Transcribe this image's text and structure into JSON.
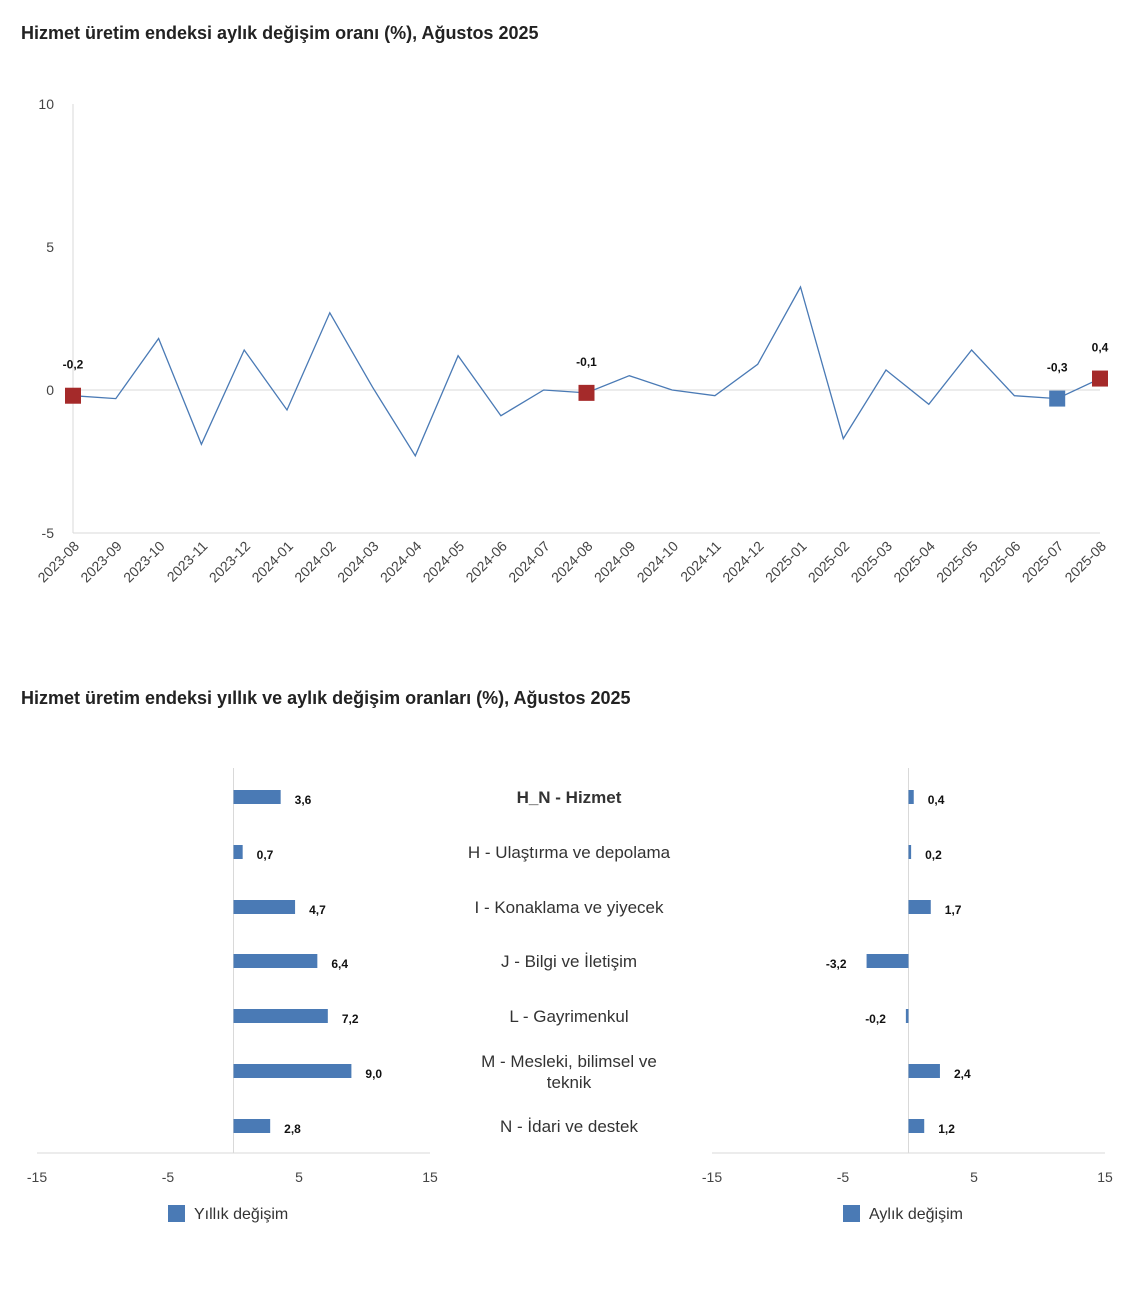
{
  "page": {
    "line_title": "Hizmet üretim endeksi aylık değişim oranı (%), Ağustos 2025",
    "bar_title": "Hizmet üretim endeksi yıllık ve aylık değişim oranları (%), Ağustos 2025"
  },
  "colors": {
    "line": "#4a7ab5",
    "bar": "#4a7ab5",
    "highlight_red": "#a52a2a",
    "highlight_blue": "#4a7ab5",
    "grid": "#d9d9d9"
  },
  "chart_data": [
    {
      "type": "line",
      "title": "Hizmet üretim endeksi aylık değişim oranı (%), Ağustos 2025",
      "x": [
        "2023-08",
        "2023-09",
        "2023-10",
        "2023-11",
        "2023-12",
        "2024-01",
        "2024-02",
        "2024-03",
        "2024-04",
        "2024-05",
        "2024-06",
        "2024-07",
        "2024-08",
        "2024-09",
        "2024-10",
        "2024-11",
        "2024-12",
        "2025-01",
        "2025-02",
        "2025-03",
        "2025-04",
        "2025-05",
        "2025-06",
        "2025-07",
        "2025-08"
      ],
      "values": [
        -0.2,
        -0.3,
        1.8,
        -1.9,
        1.4,
        -0.7,
        2.7,
        0.1,
        -2.3,
        1.2,
        -0.9,
        0.0,
        -0.1,
        0.5,
        0.0,
        -0.2,
        0.9,
        3.6,
        -1.7,
        0.7,
        -0.5,
        1.4,
        -0.2,
        -0.3,
        0.4
      ],
      "ylim": [
        -5,
        10
      ],
      "yticks": [
        "-5",
        "0",
        "5",
        "10"
      ],
      "ytick_values": [
        -5,
        0,
        5,
        10
      ],
      "highlights": [
        {
          "index": 0,
          "label": "-0,2",
          "color": "red"
        },
        {
          "index": 12,
          "label": "-0,1",
          "color": "red"
        },
        {
          "index": 23,
          "label": "-0,3",
          "color": "blue"
        },
        {
          "index": 24,
          "label": "0,4",
          "color": "red"
        }
      ]
    },
    {
      "type": "bar",
      "orientation": "horizontal",
      "title": "Hizmet üretim endeksi yıllık ve aylık değişim oranları (%), Ağustos 2025",
      "categories": [
        "H_N - Hizmet",
        "H - Ulaştırma ve depolama",
        "I - Konaklama ve yiyecek",
        "J - Bilgi ve İletişim",
        "L - Gayrimenkul",
        "M - Mesleki, bilimsel ve teknik",
        "N - İdari ve destek"
      ],
      "category_lines": [
        [
          "H_N - Hizmet"
        ],
        [
          "H - Ulaştırma ve depolama"
        ],
        [
          "I - Konaklama ve yiyecek"
        ],
        [
          "J - Bilgi ve İletişim"
        ],
        [
          "L - Gayrimenkul"
        ],
        [
          "M - Mesleki, bilimsel ve",
          "teknik"
        ],
        [
          "N - İdari ve destek"
        ]
      ],
      "bold_category": 0,
      "xlim": [
        -15,
        15
      ],
      "xticks": [
        "-15",
        "-5",
        "5",
        "15"
      ],
      "xtick_values": [
        -15,
        -5,
        5,
        15
      ],
      "series": [
        {
          "name": "Yıllık değişim",
          "values": [
            3.6,
            0.7,
            4.7,
            6.4,
            7.2,
            9.0,
            2.8
          ],
          "labels": [
            "3,6",
            "0,7",
            "4,7",
            "6,4",
            "7,2",
            "9,0",
            "2,8"
          ]
        },
        {
          "name": "Aylık değişim",
          "values": [
            0.4,
            0.2,
            1.7,
            -3.2,
            -0.2,
            2.4,
            1.2
          ],
          "labels": [
            "0,4",
            "0,2",
            "1,7",
            "-3,2",
            "-0,2",
            "2,4",
            "1,2"
          ]
        }
      ]
    }
  ]
}
